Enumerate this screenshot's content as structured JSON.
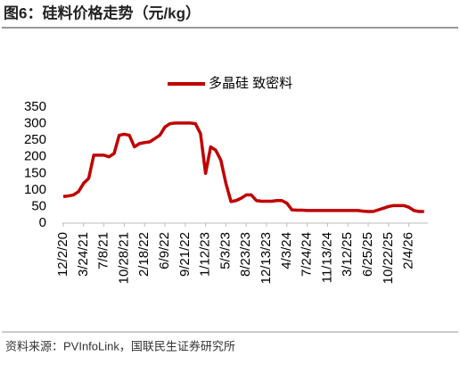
{
  "chart_data": {
    "type": "line",
    "title": "图6：硅料价格走势（元/kg）",
    "source": "资料来源：PVInfoLink，国联民生证券研究所",
    "categories": [
      "12/2/20",
      null,
      null,
      null,
      "3/24/21",
      null,
      null,
      null,
      "7/8/21",
      null,
      null,
      null,
      "10/28/21",
      null,
      null,
      null,
      "2/18/22",
      null,
      null,
      null,
      "6/9/22",
      null,
      null,
      null,
      "9/21/22",
      null,
      null,
      null,
      "1/12/23",
      null,
      null,
      null,
      "5/3/23",
      null,
      null,
      null,
      "8/23/23",
      null,
      null,
      null,
      "12/13/23",
      null,
      null,
      null,
      "4/3/24",
      null,
      null,
      null,
      "7/24/24",
      null,
      null,
      null,
      "11/13/24",
      null,
      null,
      null,
      "3/12/25",
      null,
      null,
      null,
      "6/25/25",
      null,
      null,
      null,
      "10/22/25",
      null,
      null,
      null,
      "2/4/26",
      null,
      null,
      null
    ],
    "series": [
      {
        "name": "多晶硅 致密料",
        "color": "#c00000",
        "values": [
          80,
          82,
          85,
          95,
          120,
          135,
          205,
          205,
          205,
          200,
          210,
          265,
          268,
          265,
          230,
          240,
          243,
          245,
          255,
          265,
          290,
          300,
          302,
          302,
          302,
          302,
          300,
          270,
          150,
          230,
          220,
          190,
          120,
          65,
          68,
          75,
          85,
          85,
          68,
          66,
          66,
          66,
          68,
          68,
          60,
          40,
          39,
          39,
          38,
          38,
          38,
          38,
          38,
          38,
          38,
          38,
          38,
          38,
          38,
          36,
          35,
          35,
          40,
          45,
          50,
          53,
          53,
          53,
          48,
          38,
          35,
          35
        ]
      }
    ],
    "ylim": [
      0,
      350
    ],
    "yticks": [
      0,
      50,
      100,
      150,
      200,
      250,
      300,
      350
    ],
    "legend": "top"
  }
}
